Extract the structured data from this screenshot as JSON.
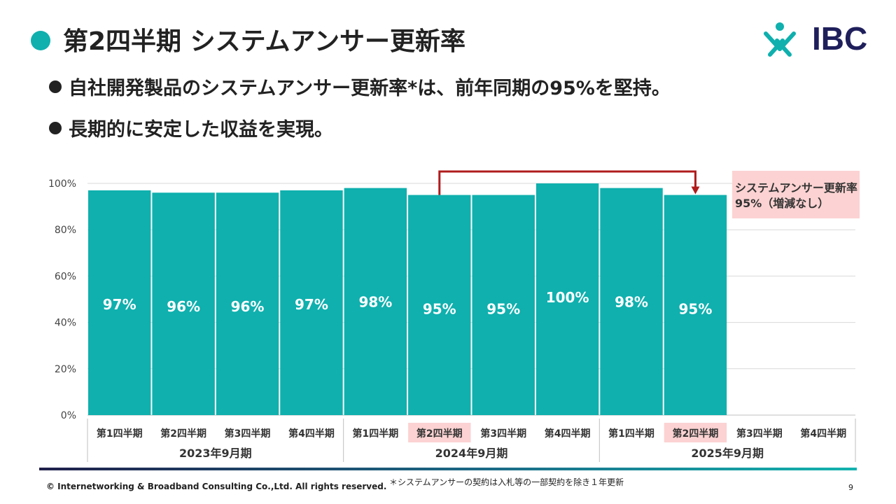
{
  "title": "第2四半期 システムアンサー更新率",
  "bullets": [
    "自社開発製品のシステムアンサー更新率*は、前年同期の95%を堅持。",
    "長期的に安定した収益を実現。"
  ],
  "logo_text": "IBC",
  "callout": {
    "line1": "システムアンサー更新率",
    "line2": "95%（増減なし）"
  },
  "footer": {
    "copyright": "© Internetworking & Broadband Consulting Co.,Ltd. All rights reserved.",
    "note": "＊システムアンサーの契約は入札等の一部契約を除き１年更新",
    "page_number": "9"
  },
  "colors": {
    "bar": "#0fb0ae",
    "highlight": "#fcd2d2",
    "arrow": "#b01c1c",
    "grid": "#d9d9d9"
  },
  "chart_data": {
    "type": "bar",
    "categories": [
      "第1四半期",
      "第2四半期",
      "第3四半期",
      "第4四半期",
      "第1四半期",
      "第2四半期",
      "第3四半期",
      "第4四半期",
      "第1四半期",
      "第2四半期",
      "第3四半期",
      "第4四半期"
    ],
    "groups": [
      "2023年9月期",
      "2024年9月期",
      "2025年9月期"
    ],
    "values": [
      97,
      96,
      96,
      97,
      98,
      95,
      95,
      100,
      98,
      95,
      null,
      null
    ],
    "data_labels": [
      "97%",
      "96%",
      "96%",
      "97%",
      "98%",
      "95%",
      "95%",
      "100%",
      "98%",
      "95%",
      "",
      ""
    ],
    "highlighted_categories": [
      5,
      9
    ],
    "yticks": [
      "0%",
      "20%",
      "40%",
      "60%",
      "80%",
      "100%"
    ],
    "ylim": [
      0,
      100
    ],
    "grid": true
  }
}
